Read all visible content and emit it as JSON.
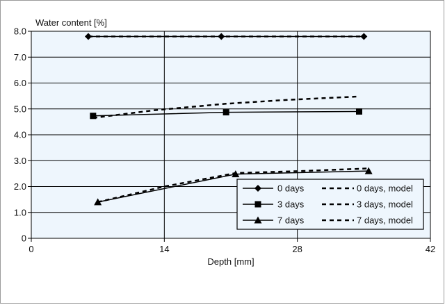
{
  "chart_data": {
    "type": "line",
    "ylabel": "Water content [%]",
    "xlabel": "Depth [mm]",
    "xlim": [
      0,
      42
    ],
    "ylim": [
      0,
      8.0
    ],
    "xticks": [
      "0",
      "14",
      "28",
      "42"
    ],
    "yticks": [
      "0",
      "1.0",
      "2.0",
      "3.0",
      "4.0",
      "5.0",
      "6.0",
      "7.0",
      "8.0"
    ],
    "grid": true,
    "legend_position": "bottom-right",
    "plot_background": "#eef6fd",
    "series": [
      {
        "name": "0 days",
        "style": "solid",
        "marker": "diamond",
        "x": [
          6,
          20,
          35
        ],
        "y": [
          7.8,
          7.8,
          7.8
        ]
      },
      {
        "name": "0 days, model",
        "style": "dashed",
        "marker": "none",
        "x": [
          6,
          35
        ],
        "y": [
          7.8,
          7.8
        ]
      },
      {
        "name": "3 days",
        "style": "solid",
        "marker": "square",
        "x": [
          6.5,
          20.5,
          34.5
        ],
        "y": [
          4.73,
          4.87,
          4.9
        ]
      },
      {
        "name": "3 days, model",
        "style": "dashed",
        "marker": "none",
        "x": [
          6.5,
          13,
          20.5,
          27,
          34.5
        ],
        "y": [
          4.65,
          4.95,
          5.2,
          5.35,
          5.48
        ]
      },
      {
        "name": "7 days",
        "style": "solid",
        "marker": "triangle",
        "x": [
          7,
          21.5,
          35.5
        ],
        "y": [
          1.4,
          2.48,
          2.6
        ]
      },
      {
        "name": "7 days, model",
        "style": "dashed",
        "marker": "none",
        "x": [
          7,
          14,
          21.5,
          28.5,
          35.5
        ],
        "y": [
          1.4,
          2.0,
          2.52,
          2.6,
          2.7
        ]
      }
    ]
  }
}
